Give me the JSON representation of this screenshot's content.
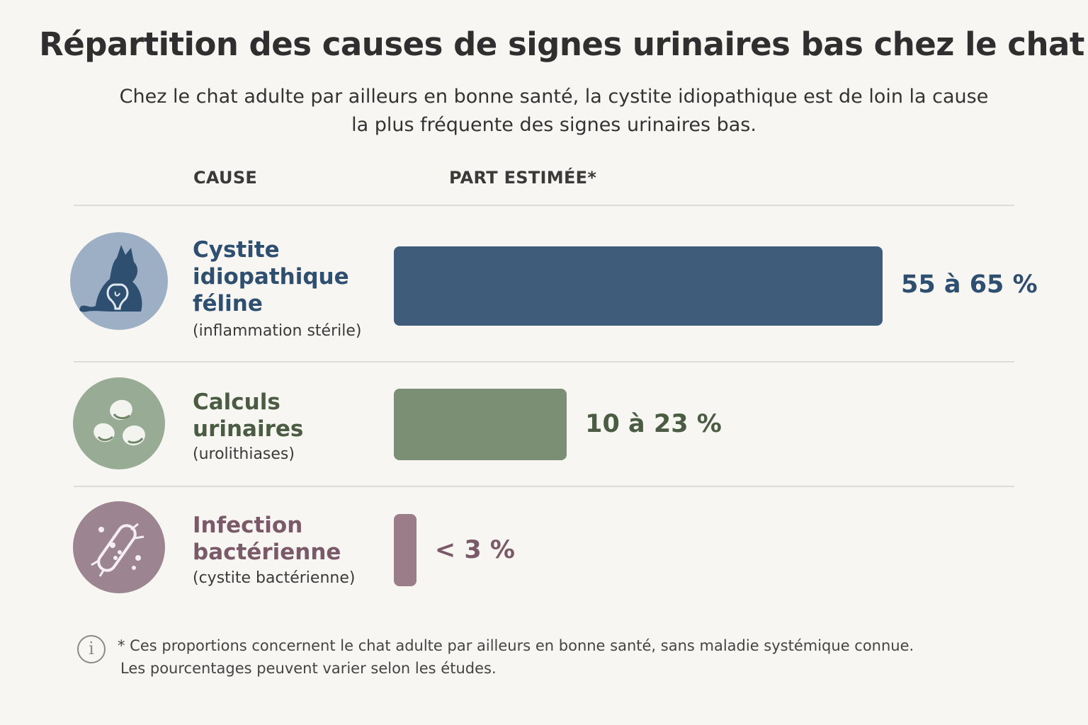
{
  "title": "Répartition des causes de signes urinaires bas chez le chat",
  "subtitle": [
    "Chez le chat adulte par ailleurs en bonne santé, la cystite idiopathique est de loin la cause",
    "la plus fréquente des signes urinaires bas."
  ],
  "columns": {
    "cause": "CAUSE",
    "share": "PART ESTIMÉE*"
  },
  "chart_data": {
    "type": "bar",
    "orientation": "horizontal",
    "title": "Répartition des causes de signes urinaires bas chez le chat",
    "categories": [
      "Cystite idiopathique féline",
      "Calculs urinaires",
      "Infection bactérienne"
    ],
    "ranges": [
      [
        55,
        65
      ],
      [
        10,
        23
      ],
      [
        0,
        3
      ]
    ],
    "values": [
      65,
      23,
      3
    ],
    "value_labels": [
      "55 à 65 %",
      "10 à 23 %",
      "< 3 %"
    ],
    "unit": "%",
    "colors": [
      "#3f5d7a",
      "#7a8f74",
      "#9b7d89"
    ]
  },
  "rows": [
    {
      "name_lines": [
        "Cystite",
        "idiopathique",
        "féline"
      ],
      "desc": "(inflammation stérile)",
      "value_label": "55 à 65 %",
      "icon": "cat-bladder-icon",
      "color": "#2f4f70",
      "bar_color": "#3f5d7a",
      "circle_color": "#9cafc4"
    },
    {
      "name_lines": [
        "Calculs",
        "urinaires"
      ],
      "desc": "(urolithiases)",
      "value_label": "10 à 23 %",
      "icon": "stones-icon",
      "color": "#4a5c42",
      "bar_color": "#7a8f74",
      "circle_color": "#98ab95"
    },
    {
      "name_lines": [
        "Infection",
        "bactérienne"
      ],
      "desc": "(cystite bactérienne)",
      "value_label": "< 3 %",
      "icon": "bacterium-icon",
      "color": "#7a5968",
      "bar_color": "#9b7d89",
      "circle_color": "#9c8590"
    }
  ],
  "footnote": [
    "* Ces proportions concernent le chat adulte par ailleurs en bonne santé, sans maladie systémique connue.",
    "Les pourcentages peuvent varier selon les études."
  ],
  "info_icon": "info-icon"
}
